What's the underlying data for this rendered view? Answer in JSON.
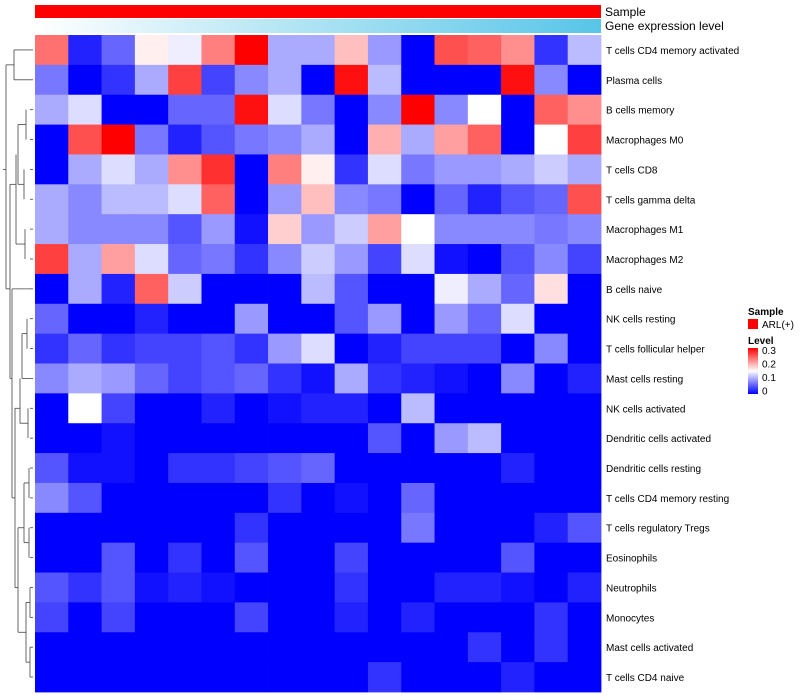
{
  "chart_data": {
    "type": "heatmap",
    "title": "",
    "annotation_tracks": [
      {
        "name": "Sample",
        "color": "#ff0000"
      },
      {
        "name": "Gene expression level",
        "gradient": [
          "#ffffff",
          "#57c5e8"
        ]
      }
    ],
    "rows": [
      "T cells CD4 memory activated",
      "Plasma cells",
      "B cells memory",
      "Macrophages M0",
      "T cells CD8",
      "T cells gamma delta",
      "Macrophages M1",
      "Macrophages M2",
      "B cells naive",
      "NK cells resting",
      "T cells follicular helper",
      "Mast cells resting",
      "NK cells activated",
      "Dendritic cells activated",
      "Dendritic cells resting",
      "T cells CD4 memory resting",
      "T cells regulatory  Tregs",
      "Eosinophils",
      "Neutrophils",
      "Monocytes",
      "Mast cells activated",
      "T cells CD4 naive"
    ],
    "values": [
      [
        0.24,
        0.02,
        0.06,
        0.16,
        0.14,
        0.23,
        0.31,
        0.1,
        0.1,
        0.19,
        0.09,
        0.0,
        0.26,
        0.25,
        0.22,
        0.03,
        0.11
      ],
      [
        0.07,
        0.0,
        0.03,
        0.1,
        0.27,
        0.04,
        0.08,
        0.1,
        0.0,
        0.3,
        0.11,
        0.0,
        0.0,
        0.0,
        0.3,
        0.08,
        0.0
      ],
      [
        0.1,
        0.13,
        0.0,
        0.0,
        0.06,
        0.06,
        0.3,
        0.13,
        0.07,
        0.0,
        0.08,
        0.31,
        0.08,
        0.15,
        0.0,
        0.25,
        0.22
      ],
      [
        0.0,
        0.26,
        0.31,
        0.07,
        0.02,
        0.05,
        0.07,
        0.08,
        0.1,
        0.0,
        0.2,
        0.1,
        0.21,
        0.25,
        0.0,
        0.15,
        0.27
      ],
      [
        0.0,
        0.1,
        0.13,
        0.1,
        0.22,
        0.28,
        0.0,
        0.23,
        0.16,
        0.03,
        0.13,
        0.07,
        0.09,
        0.09,
        0.1,
        0.12,
        0.1
      ],
      [
        0.1,
        0.08,
        0.11,
        0.11,
        0.13,
        0.25,
        0.0,
        0.09,
        0.19,
        0.08,
        0.07,
        0.0,
        0.06,
        0.02,
        0.05,
        0.06,
        0.26
      ],
      [
        0.1,
        0.08,
        0.08,
        0.08,
        0.05,
        0.09,
        0.01,
        0.18,
        0.09,
        0.12,
        0.21,
        0.15,
        0.08,
        0.08,
        0.08,
        0.07,
        0.08
      ],
      [
        0.27,
        0.1,
        0.21,
        0.13,
        0.06,
        0.07,
        0.03,
        0.08,
        0.12,
        0.09,
        0.04,
        0.13,
        0.01,
        0.0,
        0.05,
        0.08,
        0.04
      ],
      [
        0.0,
        0.1,
        0.02,
        0.25,
        0.12,
        0.0,
        0.0,
        0.0,
        0.11,
        0.05,
        0.0,
        0.0,
        0.14,
        0.1,
        0.06,
        0.17,
        0.0
      ],
      [
        0.06,
        0.0,
        0.0,
        0.02,
        0.0,
        0.0,
        0.09,
        0.0,
        0.0,
        0.05,
        0.09,
        0.0,
        0.09,
        0.06,
        0.13,
        0.0,
        0.0
      ],
      [
        0.03,
        0.06,
        0.03,
        0.04,
        0.04,
        0.05,
        0.03,
        0.09,
        0.13,
        0.0,
        0.02,
        0.04,
        0.04,
        0.04,
        0.0,
        0.08,
        0.0
      ],
      [
        0.08,
        0.1,
        0.09,
        0.06,
        0.04,
        0.05,
        0.06,
        0.03,
        0.01,
        0.1,
        0.03,
        0.02,
        0.01,
        0.0,
        0.08,
        0.0,
        0.02
      ],
      [
        0.0,
        0.15,
        0.04,
        0.0,
        0.0,
        0.02,
        0.0,
        0.01,
        0.02,
        0.02,
        0.0,
        0.11,
        0.0,
        0.0,
        0.0,
        0.0,
        0.0
      ],
      [
        0.0,
        0.0,
        0.01,
        0.0,
        0.0,
        0.0,
        0.0,
        0.0,
        0.0,
        0.0,
        0.05,
        0.0,
        0.09,
        0.11,
        0.0,
        0.0,
        0.0
      ],
      [
        0.05,
        0.01,
        0.01,
        0.0,
        0.03,
        0.03,
        0.04,
        0.05,
        0.06,
        0.0,
        0.0,
        0.0,
        0.0,
        0.0,
        0.02,
        0.0,
        0.0
      ],
      [
        0.08,
        0.05,
        0.0,
        0.0,
        0.0,
        0.0,
        0.0,
        0.03,
        0.0,
        0.01,
        0.0,
        0.06,
        0.0,
        0.0,
        0.0,
        0.0,
        0.0
      ],
      [
        0.0,
        0.0,
        0.0,
        0.0,
        0.0,
        0.0,
        0.03,
        0.0,
        0.0,
        0.0,
        0.0,
        0.07,
        0.0,
        0.0,
        0.0,
        0.02,
        0.05
      ],
      [
        0.0,
        0.0,
        0.05,
        0.0,
        0.03,
        0.0,
        0.05,
        0.0,
        0.0,
        0.04,
        0.0,
        0.0,
        0.0,
        0.0,
        0.05,
        0.0,
        0.0
      ],
      [
        0.05,
        0.03,
        0.05,
        0.01,
        0.02,
        0.01,
        0.0,
        0.0,
        0.0,
        0.03,
        0.0,
        0.0,
        0.02,
        0.02,
        0.01,
        0.0,
        0.02
      ],
      [
        0.04,
        0.0,
        0.04,
        0.0,
        0.0,
        0.0,
        0.04,
        0.0,
        0.0,
        0.02,
        0.0,
        0.02,
        0.0,
        0.0,
        0.0,
        0.03,
        0.0
      ],
      [
        0.0,
        0.0,
        0.0,
        0.0,
        0.0,
        0.0,
        0.0,
        0.0,
        0.0,
        0.0,
        0.0,
        0.0,
        0.0,
        0.03,
        0.0,
        0.03,
        0.0
      ],
      [
        0.0,
        0.0,
        0.0,
        0.0,
        0.0,
        0.0,
        0.0,
        0.0,
        0.0,
        0.0,
        0.03,
        0.0,
        0.0,
        0.0,
        0.02,
        0.0,
        0.0
      ]
    ],
    "dendrogram_order_note": "rows clustered; column dendrogram not shown",
    "color_scale": {
      "min": 0,
      "mid": 0.15,
      "max": 0.31,
      "low": "#0000ff",
      "midColor": "#ffffff",
      "high": "#ff0000"
    },
    "legend": {
      "sample_title": "Sample",
      "sample_entry": "ARL(+)",
      "level_title": "Level",
      "level_ticks": [
        "0.3",
        "0.2",
        "0.1",
        "0"
      ],
      "position": "right"
    }
  }
}
